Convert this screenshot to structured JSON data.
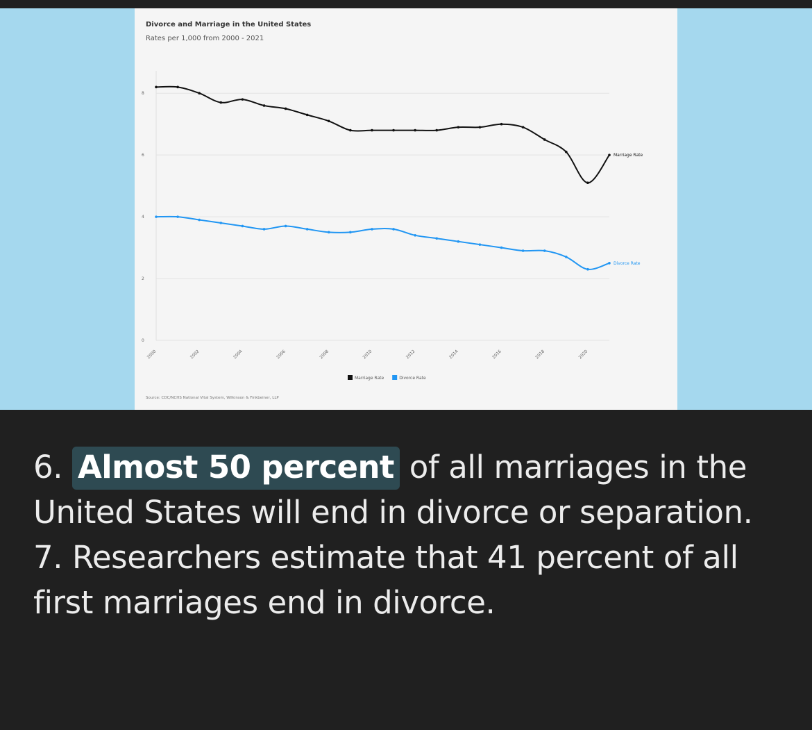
{
  "chart_data": {
    "type": "line",
    "title": "Divorce and Marriage in the United States",
    "subtitle": "Rates per 1,000 from 2000 - 2021",
    "x": [
      2000,
      2001,
      2002,
      2003,
      2004,
      2005,
      2006,
      2007,
      2008,
      2009,
      2010,
      2011,
      2012,
      2013,
      2014,
      2015,
      2016,
      2017,
      2018,
      2019,
      2020,
      2021
    ],
    "xticks": [
      2000,
      2002,
      2004,
      2006,
      2008,
      2010,
      2012,
      2014,
      2016,
      2018,
      2020
    ],
    "ylim": [
      0,
      8.5
    ],
    "yticks": [
      0,
      2,
      4,
      6,
      8
    ],
    "grid": true,
    "legend_placement": "bottom-center",
    "series": [
      {
        "name": "Marriage Rate",
        "color": "#111111",
        "values": [
          8.2,
          8.2,
          8.0,
          7.7,
          7.8,
          7.6,
          7.5,
          7.3,
          7.1,
          6.8,
          6.8,
          6.8,
          6.8,
          6.8,
          6.9,
          6.9,
          7.0,
          6.9,
          6.5,
          6.1,
          5.1,
          6.0
        ]
      },
      {
        "name": "Divorce Rate",
        "color": "#2196f3",
        "values": [
          4.0,
          4.0,
          3.9,
          3.8,
          3.7,
          3.6,
          3.7,
          3.6,
          3.5,
          3.5,
          3.6,
          3.6,
          3.4,
          3.3,
          3.2,
          3.1,
          3.0,
          2.9,
          2.9,
          2.7,
          2.3,
          2.5
        ]
      }
    ],
    "source": "Source: CDC/NCHS National Vital System, Wilkinson & Finkbeiner, LLP"
  },
  "caption": {
    "number_a": "6.",
    "highlight": "Almost 50 percent",
    "text_a": "of all marriages in the United States will end in divorce or separation.",
    "number_b": "7.",
    "text_b": "Researchers estimate that 41 percent of all first marriages end in divorce."
  }
}
